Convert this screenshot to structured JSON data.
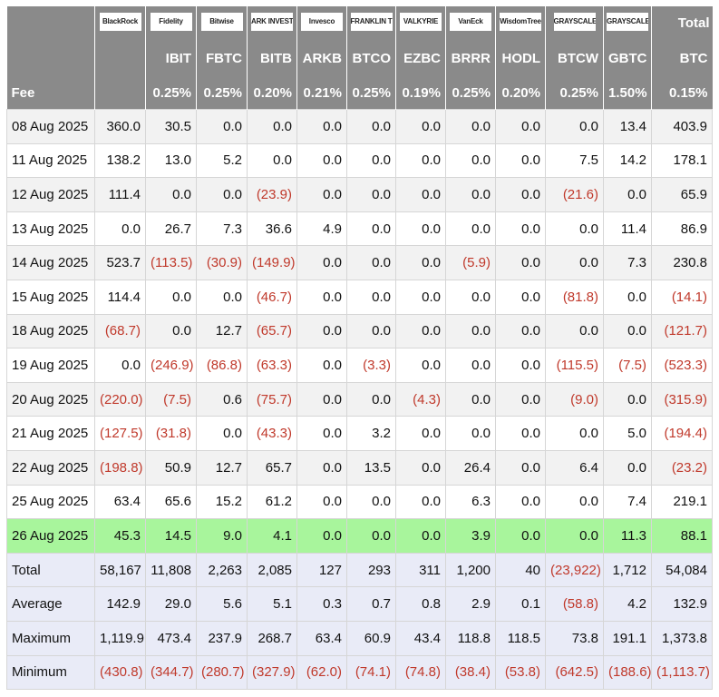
{
  "header": {
    "total_label": "Total",
    "fee_label": "Fee",
    "issuers": [
      "BlackRock",
      "Fidelity",
      "Bitwise",
      "ARK INVEST",
      "Invesco",
      "FRANKLIN TEMPLETON",
      "VALKYRIE",
      "VanEck",
      "WisdomTree",
      "GRAYSCALE",
      "GRAYSCALE"
    ],
    "tickers": [
      "IBIT",
      "FBTC",
      "BITB",
      "ARKB",
      "BTCO",
      "EZBC",
      "BRRR",
      "HODL",
      "BTCW",
      "GBTC",
      "BTC"
    ],
    "fees": [
      "0.25%",
      "0.25%",
      "0.20%",
      "0.21%",
      "0.25%",
      "0.19%",
      "0.25%",
      "0.20%",
      "0.25%",
      "1.50%",
      "0.15%"
    ]
  },
  "table": {
    "rows": [
      [
        "08 Aug 2025",
        "360.0",
        "30.5",
        "0.0",
        "0.0",
        "0.0",
        "0.0",
        "0.0",
        "0.0",
        "0.0",
        "0.0",
        "13.4",
        "403.9"
      ],
      [
        "11 Aug 2025",
        "138.2",
        "13.0",
        "5.2",
        "0.0",
        "0.0",
        "0.0",
        "0.0",
        "0.0",
        "0.0",
        "7.5",
        "14.2",
        "178.1"
      ],
      [
        "12 Aug 2025",
        "111.4",
        "0.0",
        "0.0",
        "(23.9)",
        "0.0",
        "0.0",
        "0.0",
        "0.0",
        "0.0",
        "(21.6)",
        "0.0",
        "65.9"
      ],
      [
        "13 Aug 2025",
        "0.0",
        "26.7",
        "7.3",
        "36.6",
        "4.9",
        "0.0",
        "0.0",
        "0.0",
        "0.0",
        "0.0",
        "11.4",
        "86.9"
      ],
      [
        "14 Aug 2025",
        "523.7",
        "(113.5)",
        "(30.9)",
        "(149.9)",
        "0.0",
        "0.0",
        "0.0",
        "(5.9)",
        "0.0",
        "0.0",
        "7.3",
        "230.8"
      ],
      [
        "15 Aug 2025",
        "114.4",
        "0.0",
        "0.0",
        "(46.7)",
        "0.0",
        "0.0",
        "0.0",
        "0.0",
        "0.0",
        "(81.8)",
        "0.0",
        "(14.1)"
      ],
      [
        "18 Aug 2025",
        "(68.7)",
        "0.0",
        "12.7",
        "(65.7)",
        "0.0",
        "0.0",
        "0.0",
        "0.0",
        "0.0",
        "0.0",
        "0.0",
        "(121.7)"
      ],
      [
        "19 Aug 2025",
        "0.0",
        "(246.9)",
        "(86.8)",
        "(63.3)",
        "0.0",
        "(3.3)",
        "0.0",
        "0.0",
        "0.0",
        "(115.5)",
        "(7.5)",
        "(523.3)"
      ],
      [
        "20 Aug 2025",
        "(220.0)",
        "(7.5)",
        "0.6",
        "(75.7)",
        "0.0",
        "0.0",
        "(4.3)",
        "0.0",
        "0.0",
        "(9.0)",
        "0.0",
        "(315.9)"
      ],
      [
        "21 Aug 2025",
        "(127.5)",
        "(31.8)",
        "0.0",
        "(43.3)",
        "0.0",
        "3.2",
        "0.0",
        "0.0",
        "0.0",
        "0.0",
        "5.0",
        "(194.4)"
      ],
      [
        "22 Aug 2025",
        "(198.8)",
        "50.9",
        "12.7",
        "65.7",
        "0.0",
        "13.5",
        "0.0",
        "26.4",
        "0.0",
        "6.4",
        "0.0",
        "(23.2)"
      ],
      [
        "25 Aug 2025",
        "63.4",
        "65.6",
        "15.2",
        "61.2",
        "0.0",
        "0.0",
        "0.0",
        "6.3",
        "0.0",
        "0.0",
        "7.4",
        "219.1"
      ],
      [
        "26 Aug 2025",
        "45.3",
        "14.5",
        "9.0",
        "4.1",
        "0.0",
        "0.0",
        "0.0",
        "3.9",
        "0.0",
        "0.0",
        "11.3",
        "88.1"
      ]
    ],
    "summary": [
      [
        "Total",
        "58,167",
        "11,808",
        "2,263",
        "2,085",
        "127",
        "293",
        "311",
        "1,200",
        "40",
        "(23,922)",
        "1,712",
        "54,084"
      ],
      [
        "Average",
        "142.9",
        "29.0",
        "5.6",
        "5.1",
        "0.3",
        "0.7",
        "0.8",
        "2.9",
        "0.1",
        "(58.8)",
        "4.2",
        "132.9"
      ],
      [
        "Maximum",
        "1,119.9",
        "473.4",
        "237.9",
        "268.7",
        "63.4",
        "60.9",
        "43.4",
        "118.8",
        "118.5",
        "73.8",
        "191.1",
        "1,373.8"
      ],
      [
        "Minimum",
        "(430.8)",
        "(344.7)",
        "(280.7)",
        "(327.9)",
        "(62.0)",
        "(74.1)",
        "(74.8)",
        "(38.4)",
        "(53.8)",
        "(642.5)",
        "(188.6)",
        "(1,113.7)"
      ]
    ]
  }
}
